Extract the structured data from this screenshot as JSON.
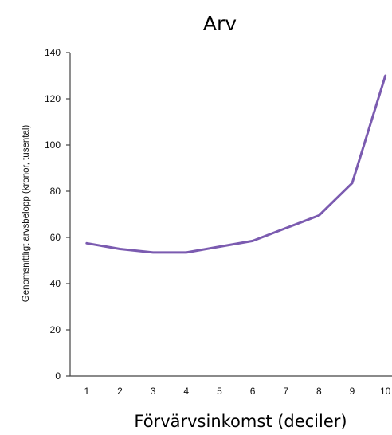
{
  "chart_data": {
    "type": "line",
    "title": "Arv",
    "xlabel": "Förvärvsinkomst (deciler)",
    "ylabel": "Genomsnittligt arvsbelopp (kronor, tusental)",
    "x": [
      1,
      2,
      3,
      4,
      5,
      6,
      7,
      8,
      9,
      10
    ],
    "series": [
      {
        "values": [
          57.5,
          55,
          53.5,
          53.5,
          56,
          58.5,
          64,
          69.5,
          83.5,
          130
        ],
        "color": "#7b5bb0"
      }
    ],
    "xlim": [
      0.5,
      10.2
    ],
    "ylim": [
      0,
      140
    ],
    "yticks": [
      0,
      20,
      40,
      60,
      80,
      100,
      120,
      140
    ],
    "xticks": [
      "1",
      "2",
      "3",
      "4",
      "5",
      "6",
      "7",
      "8",
      "9",
      "10"
    ],
    "grid": false,
    "legend": "none"
  }
}
